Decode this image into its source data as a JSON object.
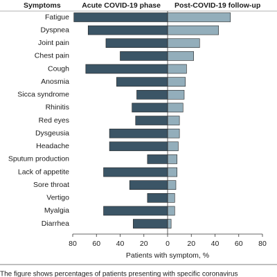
{
  "chart_data": {
    "type": "butterfly",
    "header_label": "Symptoms",
    "categories": [
      "Fatigue",
      "Dyspnea",
      "Joint pain",
      "Chest pain",
      "Cough",
      "Anosmia",
      "Sicca syndrome",
      "Rhinitis",
      "Red eyes",
      "Dysgeusia",
      "Headache",
      "Sputum production",
      "Lack of appetite",
      "Sore throat",
      "Vertigo",
      "Myalgia",
      "Diarrhea"
    ],
    "series": [
      {
        "name": "Acute COVID-19 phase",
        "color": "#3b5566",
        "values": [
          79,
          67,
          52,
          40,
          69,
          43,
          26,
          30,
          27,
          49,
          49,
          17,
          54,
          32,
          17,
          54,
          29
        ]
      },
      {
        "name": "Post-COVID-19 follow-up",
        "color": "#93aebb",
        "values": [
          53,
          43,
          27,
          22,
          16,
          15,
          14,
          13,
          10,
          10,
          9,
          8,
          8,
          7,
          6,
          6,
          3
        ]
      }
    ],
    "xlim": [
      -80,
      80
    ],
    "xticks": [
      {
        "value": -80,
        "label": "80"
      },
      {
        "value": -60,
        "label": "60"
      },
      {
        "value": -40,
        "label": "40"
      },
      {
        "value": -20,
        "label": "20"
      },
      0,
      20,
      40,
      60,
      80
    ],
    "xlabel": "Patients with symptom, %",
    "caption": "The figure shows percentages of patients presenting with specific coronavirus"
  }
}
